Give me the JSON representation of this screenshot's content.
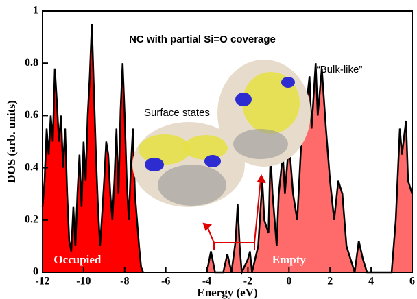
{
  "chart_data": {
    "type": "line",
    "title": "NC with partial Si=O coverage",
    "xlabel": "Energy (eV)",
    "ylabel": "DOS (arb. units)",
    "annotations": [
      "Surface states",
      "“Bulk-like”"
    ],
    "xlim": [
      -12,
      6
    ],
    "ylim": [
      0,
      1
    ],
    "xticks": [
      -12,
      -10,
      -8,
      -6,
      -4,
      -2,
      0,
      2,
      4,
      6
    ],
    "yticks": [
      0,
      0.2,
      0.4,
      0.6,
      0.8,
      1
    ],
    "line_color": "#000000",
    "series": [
      {
        "name": "Occupied",
        "color": "#ff0000",
        "x": [
          -12,
          -11.9,
          -11.8,
          -11.7,
          -11.6,
          -11.5,
          -11.4,
          -11.3,
          -11.2,
          -11.1,
          -11.0,
          -10.9,
          -10.8,
          -10.7,
          -10.6,
          -10.5,
          -10.4,
          -10.3,
          -10.2,
          -10.1,
          -10.0,
          -9.9,
          -9.8,
          -9.7,
          -9.6,
          -9.5,
          -9.4,
          -9.3,
          -9.2,
          -9.1,
          -9.0,
          -8.9,
          -8.8,
          -8.7,
          -8.6,
          -8.5,
          -8.4,
          -8.3,
          -8.2,
          -8.1,
          -8.0,
          -7.9,
          -7.8,
          -7.7,
          -7.6,
          -7.5,
          -7.4,
          -7.3,
          -7.2,
          -7.1
        ],
        "values": [
          0.25,
          0.35,
          0.55,
          0.45,
          0.6,
          0.5,
          0.78,
          0.65,
          0.5,
          0.6,
          0.4,
          0.55,
          0.3,
          0.12,
          0.08,
          0.25,
          0.1,
          0.3,
          0.45,
          0.25,
          0.5,
          0.35,
          0.6,
          0.75,
          0.95,
          0.7,
          0.45,
          0.25,
          0.1,
          0.22,
          0.35,
          0.5,
          0.45,
          0.3,
          0.2,
          0.35,
          0.55,
          0.3,
          0.62,
          0.8,
          0.6,
          0.35,
          0.2,
          0.4,
          0.55,
          0.3,
          0.2,
          0.1,
          0.02,
          0
        ]
      },
      {
        "name": "Empty",
        "color": "#ff6a6a",
        "x": [
          -4.0,
          -3.8,
          -3.6,
          -3.2,
          -3.0,
          -2.8,
          -2.6,
          -2.5,
          -2.4,
          -2.3,
          -2.0,
          -1.9,
          -1.8,
          -1.5,
          -1.3,
          -1.2,
          -1.0,
          -0.9,
          -0.8,
          -0.7,
          -0.6,
          -0.5,
          -0.3,
          -0.2,
          0,
          0.2,
          0.4,
          0.6,
          0.8,
          1.0,
          1.1,
          1.3,
          1.4,
          1.6,
          1.8,
          2.0,
          2.2,
          2.4,
          2.6,
          2.8,
          3.0,
          3.2,
          3.4,
          3.6,
          3.8,
          5.0,
          5.2,
          5.4,
          5.5,
          5.7,
          5.8,
          6.0
        ],
        "values": [
          0,
          0.08,
          0,
          0,
          0.07,
          0,
          0.12,
          0.26,
          0.1,
          0,
          0.05,
          0.08,
          0,
          0.1,
          0.35,
          0.2,
          0.15,
          0.45,
          0.3,
          0.2,
          0.1,
          0.3,
          0.45,
          0.3,
          0.5,
          0.3,
          0.2,
          0.5,
          0.6,
          0.75,
          0.55,
          0.8,
          0.6,
          0.78,
          0.55,
          0.35,
          0.2,
          0.35,
          0.3,
          0.1,
          0.05,
          0,
          0.12,
          0.05,
          0,
          0,
          0.2,
          0.55,
          0.45,
          0.58,
          0.35,
          0.3
        ]
      }
    ]
  }
}
